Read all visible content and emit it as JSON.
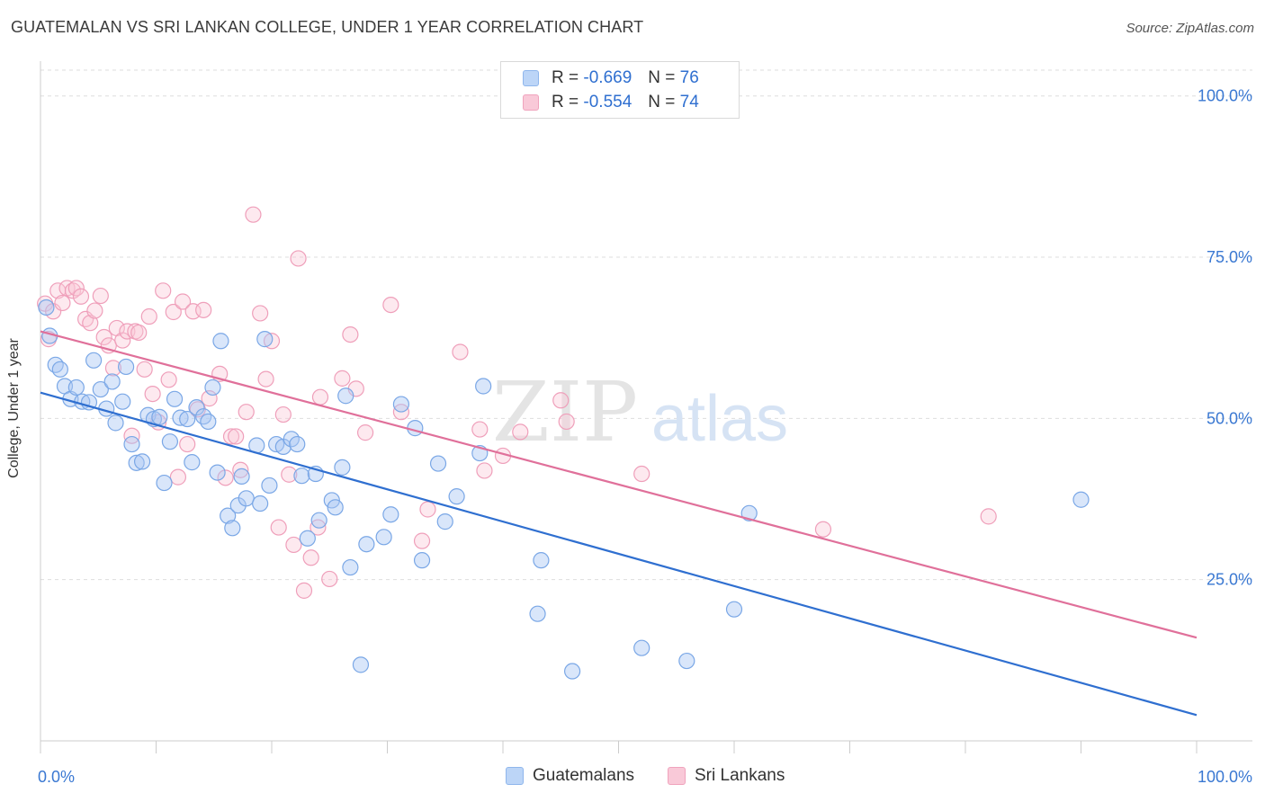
{
  "header": {
    "title": "GUATEMALAN VS SRI LANKAN COLLEGE, UNDER 1 YEAR CORRELATION CHART",
    "source": "Source: ZipAtlas.com"
  },
  "watermark": {
    "zip": "ZIP",
    "atlas": "atlas"
  },
  "legend": {
    "rows": [
      {
        "r_label": "R =",
        "r_value": "-0.669",
        "n_label": "N =",
        "n_value": "76",
        "color": "#8fb6ec",
        "fill": "#bcd5f7"
      },
      {
        "r_label": "R =",
        "r_value": "-0.554",
        "n_label": "N =",
        "n_value": "74",
        "color": "#f0a3bd",
        "fill": "#f9c9d8"
      }
    ]
  },
  "bottom_legend": {
    "items": [
      {
        "label": "Guatemalans",
        "color": "#8fb6ec",
        "fill": "#bcd5f7"
      },
      {
        "label": "Sri Lankans",
        "color": "#f0a3bd",
        "fill": "#f9c9d8"
      }
    ]
  },
  "colors": {
    "blue_point_stroke": "#7aa7e6",
    "blue_point_fill": "rgba(170,200,245,0.45)",
    "blue_line": "#2f6fd0",
    "pink_point_stroke": "#ef9fba",
    "pink_point_fill": "rgba(249,200,216,0.40)",
    "pink_line": "#e0709a",
    "tick_label": "#3a78d2",
    "grid": "#dddddd"
  },
  "chart_data": {
    "type": "scatter",
    "title": "GUATEMALAN VS SRI LANKAN COLLEGE, UNDER 1 YEAR CORRELATION CHART",
    "xlabel": "",
    "ylabel": "College, Under 1 year",
    "xlim": [
      0,
      100
    ],
    "ylim": [
      0,
      104
    ],
    "x_tick_labels": [
      "0.0%",
      "100.0%"
    ],
    "y_ticks": [
      25,
      50,
      75,
      100
    ],
    "y_tick_labels": [
      "25.0%",
      "50.0%",
      "75.0%",
      "100.0%"
    ],
    "grid": true,
    "series": [
      {
        "name": "Guatemalans",
        "r": -0.669,
        "n": 76,
        "trend": {
          "x": [
            0,
            100
          ],
          "y": [
            54.0,
            4.0
          ]
        },
        "points": [
          [
            0.5,
            67.2
          ],
          [
            0.8,
            62.8
          ],
          [
            1.3,
            58.3
          ],
          [
            1.7,
            57.6
          ],
          [
            2.1,
            55.0
          ],
          [
            2.6,
            53.0
          ],
          [
            3.1,
            54.8
          ],
          [
            3.6,
            52.6
          ],
          [
            4.2,
            52.5
          ],
          [
            4.6,
            59.0
          ],
          [
            5.2,
            54.5
          ],
          [
            5.7,
            51.5
          ],
          [
            6.2,
            55.7
          ],
          [
            6.5,
            49.3
          ],
          [
            7.1,
            52.6
          ],
          [
            7.4,
            58.0
          ],
          [
            7.9,
            46.0
          ],
          [
            8.3,
            43.1
          ],
          [
            8.8,
            43.3
          ],
          [
            9.3,
            50.5
          ],
          [
            9.8,
            49.9
          ],
          [
            10.3,
            50.2
          ],
          [
            10.7,
            40.0
          ],
          [
            11.2,
            46.4
          ],
          [
            11.6,
            53.0
          ],
          [
            12.1,
            50.1
          ],
          [
            12.7,
            49.9
          ],
          [
            13.1,
            43.2
          ],
          [
            13.5,
            51.7
          ],
          [
            14.1,
            50.3
          ],
          [
            14.5,
            49.5
          ],
          [
            14.9,
            54.8
          ],
          [
            15.3,
            41.6
          ],
          [
            15.6,
            62.0
          ],
          [
            16.2,
            34.9
          ],
          [
            16.6,
            33.0
          ],
          [
            17.1,
            36.5
          ],
          [
            17.4,
            41.0
          ],
          [
            17.8,
            37.6
          ],
          [
            18.7,
            45.8
          ],
          [
            19.0,
            36.8
          ],
          [
            19.4,
            62.3
          ],
          [
            19.8,
            39.6
          ],
          [
            20.4,
            46.0
          ],
          [
            21.0,
            45.6
          ],
          [
            21.7,
            46.8
          ],
          [
            22.2,
            46.0
          ],
          [
            22.6,
            41.1
          ],
          [
            23.1,
            31.4
          ],
          [
            23.8,
            41.4
          ],
          [
            24.1,
            34.2
          ],
          [
            25.2,
            37.3
          ],
          [
            25.5,
            36.2
          ],
          [
            26.1,
            42.4
          ],
          [
            26.4,
            53.5
          ],
          [
            26.8,
            26.9
          ],
          [
            27.7,
            11.8
          ],
          [
            28.2,
            30.5
          ],
          [
            29.7,
            31.6
          ],
          [
            30.3,
            35.1
          ],
          [
            31.2,
            52.2
          ],
          [
            32.4,
            48.5
          ],
          [
            33.0,
            28.0
          ],
          [
            34.4,
            43.0
          ],
          [
            35.0,
            34.0
          ],
          [
            36.0,
            37.9
          ],
          [
            38.0,
            44.6
          ],
          [
            38.3,
            55.0
          ],
          [
            43.3,
            28.0
          ],
          [
            43.0,
            19.7
          ],
          [
            46.0,
            10.8
          ],
          [
            52.0,
            14.4
          ],
          [
            55.9,
            12.4
          ],
          [
            60.0,
            20.4
          ],
          [
            61.3,
            35.3
          ],
          [
            90.0,
            37.4
          ]
        ]
      },
      {
        "name": "Sri Lankans",
        "r": -0.554,
        "n": 74,
        "trend": {
          "x": [
            0,
            100
          ],
          "y": [
            63.5,
            16.0
          ]
        },
        "points": [
          [
            0.4,
            67.8
          ],
          [
            0.7,
            62.3
          ],
          [
            1.1,
            66.6
          ],
          [
            1.5,
            69.8
          ],
          [
            1.9,
            67.9
          ],
          [
            2.3,
            70.2
          ],
          [
            2.8,
            69.8
          ],
          [
            3.1,
            70.2
          ],
          [
            3.5,
            68.9
          ],
          [
            3.9,
            65.4
          ],
          [
            4.3,
            64.8
          ],
          [
            4.7,
            66.7
          ],
          [
            5.2,
            69.0
          ],
          [
            5.5,
            62.6
          ],
          [
            5.9,
            61.3
          ],
          [
            6.3,
            57.8
          ],
          [
            6.6,
            64.0
          ],
          [
            7.1,
            62.1
          ],
          [
            7.5,
            63.5
          ],
          [
            7.9,
            47.3
          ],
          [
            8.2,
            63.5
          ],
          [
            8.5,
            63.3
          ],
          [
            9.0,
            57.6
          ],
          [
            9.4,
            65.8
          ],
          [
            9.7,
            53.8
          ],
          [
            10.2,
            49.4
          ],
          [
            10.6,
            69.8
          ],
          [
            11.1,
            56.0
          ],
          [
            11.5,
            66.5
          ],
          [
            11.9,
            40.9
          ],
          [
            12.3,
            68.1
          ],
          [
            12.7,
            46.0
          ],
          [
            13.2,
            66.6
          ],
          [
            13.6,
            51.4
          ],
          [
            14.1,
            66.8
          ],
          [
            14.6,
            53.1
          ],
          [
            15.5,
            56.9
          ],
          [
            16.0,
            40.8
          ],
          [
            16.5,
            47.2
          ],
          [
            16.9,
            47.2
          ],
          [
            17.3,
            42.0
          ],
          [
            17.8,
            51.0
          ],
          [
            18.4,
            81.6
          ],
          [
            19.0,
            66.3
          ],
          [
            19.5,
            56.1
          ],
          [
            20.0,
            62.0
          ],
          [
            20.6,
            33.1
          ],
          [
            21.0,
            50.6
          ],
          [
            21.5,
            41.3
          ],
          [
            21.9,
            30.4
          ],
          [
            22.3,
            74.8
          ],
          [
            22.8,
            23.3
          ],
          [
            23.4,
            28.4
          ],
          [
            24.0,
            33.1
          ],
          [
            24.2,
            53.3
          ],
          [
            25.0,
            25.1
          ],
          [
            26.1,
            56.2
          ],
          [
            26.8,
            63.0
          ],
          [
            27.3,
            54.6
          ],
          [
            28.1,
            47.8
          ],
          [
            30.3,
            67.6
          ],
          [
            31.2,
            51.0
          ],
          [
            33.0,
            31.0
          ],
          [
            33.5,
            35.9
          ],
          [
            36.3,
            60.3
          ],
          [
            38.4,
            41.9
          ],
          [
            38.0,
            48.3
          ],
          [
            40.0,
            44.2
          ],
          [
            41.5,
            47.9
          ],
          [
            45.0,
            52.8
          ],
          [
            45.5,
            49.5
          ],
          [
            52.0,
            41.4
          ],
          [
            67.7,
            32.8
          ],
          [
            82.0,
            34.8
          ]
        ]
      }
    ]
  }
}
